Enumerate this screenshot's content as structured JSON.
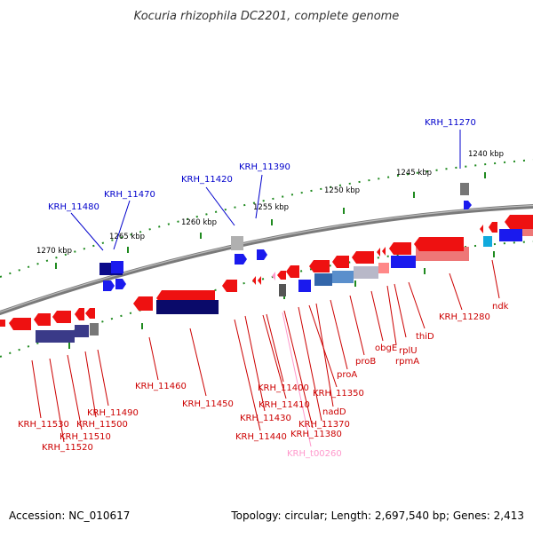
{
  "title": "Kocuria rhizophila DC2201, complete genome",
  "footer": {
    "accession": "Accession: NC_010617",
    "topology": "Topology: circular; Length: 2,697,540 bp; Genes: 2,413"
  },
  "colors": {
    "backbone": "#7f7f7f",
    "tick": "#228b22",
    "forward_gene": "#0000ee",
    "reverse_gene": "#ee0000",
    "pseudo_gene": "#ff99cc",
    "gene_label_top": "#0000cc",
    "gene_label_bottom": "#cc0000",
    "trna_label": "#ff99cc"
  },
  "scale_labels": [
    "1240 kbp",
    "1245 kbp",
    "1250 kbp",
    "1255 kbp",
    "1260 kbp",
    "1265 kbp",
    "1270 kbp"
  ],
  "gene_labels_top": [
    "KRH_11270",
    "KRH_11390",
    "KRH_11420",
    "KRH_11470",
    "KRH_11480"
  ],
  "gene_labels_bottom": [
    "KRH_11460",
    "KRH_11450",
    "KRH_11400",
    "KRH_11410",
    "KRH_11430",
    "KRH_11440",
    "KRH_11350",
    "KRH_11370",
    "KRH_11380",
    "nadD",
    "proA",
    "proB",
    "obgE",
    "rplU",
    "rpmA",
    "thiD",
    "KRH_11280",
    "ndk",
    "KRH_11490",
    "KRH_11500",
    "KRH_11510",
    "KRH_11520",
    "KRH_11530"
  ],
  "trna_label": "KRH_t00260"
}
